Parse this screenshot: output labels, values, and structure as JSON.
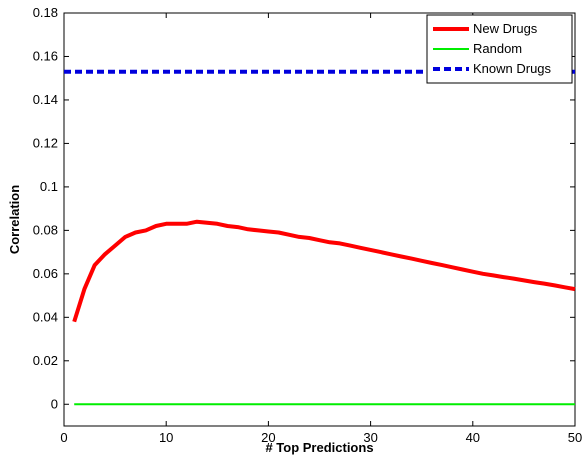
{
  "chart_data": {
    "type": "line",
    "title": "",
    "xlabel": "# Top Predictions",
    "ylabel": "Correlation",
    "xlim": [
      0,
      50
    ],
    "ylim": [
      -0.01,
      0.18
    ],
    "xticks": [
      0,
      10,
      20,
      30,
      40,
      50
    ],
    "yticks": [
      0,
      0.02,
      0.04,
      0.06,
      0.08,
      0.1,
      0.12,
      0.14,
      0.16,
      0.18
    ],
    "ytick_labels": [
      "0",
      "0.02",
      "0.04",
      "0.06",
      "0.08",
      "0.1",
      "0.12",
      "0.14",
      "0.16",
      "0.18"
    ],
    "grid": false,
    "legend_position": "top-right",
    "series": [
      {
        "name": "New Drugs",
        "color": "#ff0000",
        "style": "solid-thick",
        "x": [
          1,
          2,
          3,
          4,
          5,
          6,
          7,
          8,
          9,
          10,
          11,
          12,
          13,
          14,
          15,
          16,
          17,
          18,
          19,
          20,
          21,
          22,
          23,
          24,
          25,
          26,
          27,
          28,
          29,
          30,
          31,
          32,
          33,
          34,
          35,
          36,
          37,
          38,
          39,
          40,
          41,
          42,
          43,
          44,
          45,
          46,
          47,
          48,
          49,
          50
        ],
        "y": [
          0.038,
          0.053,
          0.064,
          0.069,
          0.073,
          0.077,
          0.079,
          0.08,
          0.082,
          0.083,
          0.083,
          0.083,
          0.084,
          0.0835,
          0.083,
          0.082,
          0.0815,
          0.0805,
          0.08,
          0.0795,
          0.079,
          0.078,
          0.077,
          0.0765,
          0.0755,
          0.0745,
          0.074,
          0.073,
          0.072,
          0.071,
          0.07,
          0.069,
          0.068,
          0.067,
          0.066,
          0.065,
          0.064,
          0.063,
          0.062,
          0.061,
          0.06,
          0.0593,
          0.0585,
          0.0578,
          0.057,
          0.0562,
          0.0555,
          0.0547,
          0.0538,
          0.053
        ]
      },
      {
        "name": "Random",
        "color": "#00ee00",
        "style": "solid-thin",
        "x": [
          1,
          50
        ],
        "y": [
          0,
          0
        ]
      },
      {
        "name": "Known Drugs",
        "color": "#0000dd",
        "style": "dashed-thick",
        "x": [
          0,
          50
        ],
        "y": [
          0.153,
          0.153
        ]
      }
    ]
  }
}
